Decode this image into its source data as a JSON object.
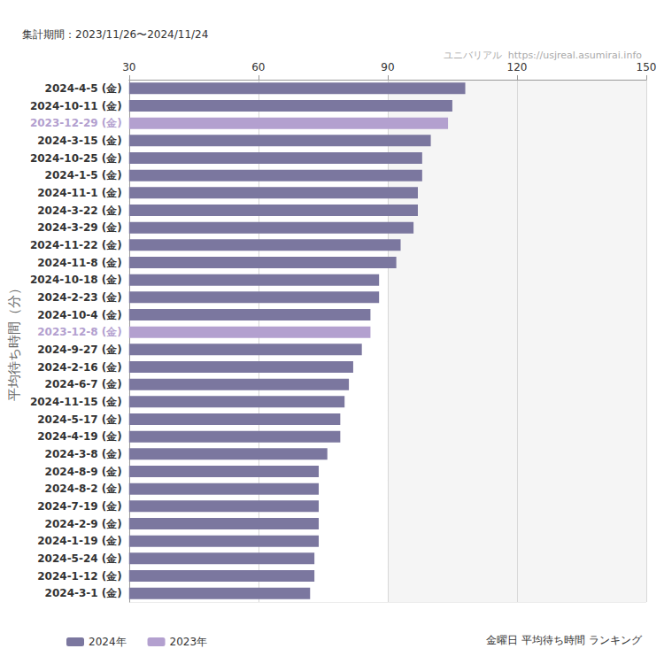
{
  "chart_data": {
    "type": "bar",
    "orientation": "horizontal",
    "title": "金曜日 平均待ち時間 ランキング",
    "subtitle": "集計期間：2023/11/26〜2024/11/24",
    "annotations": [
      "ユニバリアル  https://usjreal.asumirai.info"
    ],
    "ylabel": "平均待ち時間（分）",
    "categories": [
      "2024-4-5 (金)",
      "2024-10-11 (金)",
      "2023-12-29 (金)",
      "2024-3-15 (金)",
      "2024-10-25 (金)",
      "2024-1-5 (金)",
      "2024-11-1 (金)",
      "2024-3-22 (金)",
      "2024-3-29 (金)",
      "2024-11-22 (金)",
      "2024-11-8 (金)",
      "2024-10-18 (金)",
      "2024-2-23 (金)",
      "2024-10-4 (金)",
      "2023-12-8 (金)",
      "2024-9-27 (金)",
      "2024-2-16 (金)",
      "2024-6-7 (金)",
      "2024-11-15 (金)",
      "2024-5-17 (金)",
      "2024-4-19 (金)",
      "2024-3-8 (金)",
      "2024-8-9 (金)",
      "2024-8-2 (金)",
      "2024-7-19 (金)",
      "2024-2-9 (金)",
      "2024-1-19 (金)",
      "2024-5-24 (金)",
      "2024-1-12 (金)",
      "2024-3-1 (金)"
    ],
    "series": [
      {
        "name": "2024年",
        "color": "#7b779f",
        "values": [
          108,
          105,
          null,
          100,
          98,
          98,
          97,
          97,
          96,
          93,
          92,
          88,
          88,
          86,
          null,
          84,
          82,
          81,
          80,
          79,
          79,
          76,
          74,
          74,
          74,
          74,
          74,
          73,
          73,
          72
        ]
      },
      {
        "name": "2023年",
        "color": "#b3a0cf",
        "values": [
          null,
          null,
          104,
          null,
          null,
          null,
          null,
          null,
          null,
          null,
          null,
          null,
          null,
          null,
          86,
          null,
          null,
          null,
          null,
          null,
          null,
          null,
          null,
          null,
          null,
          null,
          null,
          null,
          null,
          null
        ]
      }
    ],
    "xlim": [
      30,
      150
    ],
    "xticks": [
      30,
      60,
      90,
      120,
      150
    ],
    "grid": true,
    "legend": "bottom-left"
  }
}
